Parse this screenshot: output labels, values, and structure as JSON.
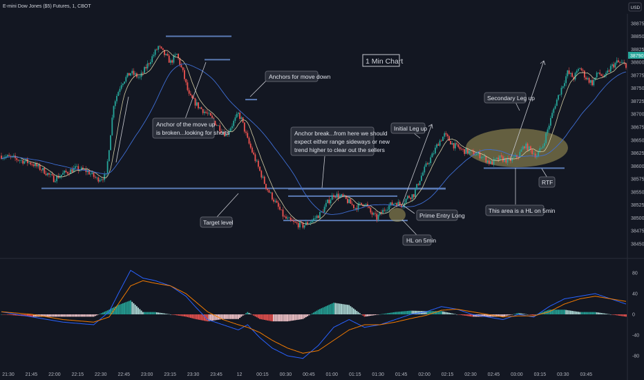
{
  "header": {
    "symbol_title": "E-mini Dow Jones ($5) Futures, 1, CBOT",
    "currency": "USD"
  },
  "chart_title": "1 Min Chart",
  "chart_data": [
    {
      "type": "candlestick",
      "title": "E-mini Dow Jones ($5) Futures, 1, CBOT",
      "ylim": [
        38438,
        38888
      ],
      "y_ticks": [
        38450,
        38475,
        38500,
        38525,
        38550,
        38575,
        38600,
        38625,
        38650,
        38675,
        38700,
        38725,
        38750,
        38775,
        38800,
        38825,
        38850,
        38875
      ],
      "x_ticks": [
        "21:30",
        "21:45",
        "22:00",
        "22:15",
        "22:30",
        "22:45",
        "23:00",
        "23:15",
        "23:30",
        "23:45",
        "12",
        "00:15",
        "00:30",
        "00:45",
        "01:00",
        "01:15",
        "01:30",
        "01:45",
        "02:00",
        "02:15",
        "02:30",
        "02:45",
        "03:00",
        "03:15",
        "03:30",
        "03:45"
      ],
      "last_price": "38790",
      "price_path": [
        [
          0,
          38620
        ],
        [
          8,
          38615
        ],
        [
          20,
          38605
        ],
        [
          28,
          38590
        ],
        [
          34,
          38575
        ],
        [
          40,
          38585
        ],
        [
          48,
          38595
        ],
        [
          56,
          38590
        ],
        [
          62,
          38575
        ],
        [
          68,
          38580
        ],
        [
          73,
          38720
        ],
        [
          78,
          38760
        ],
        [
          84,
          38780
        ],
        [
          90,
          38770
        ],
        [
          96,
          38800
        ],
        [
          102,
          38830
        ],
        [
          106,
          38815
        ],
        [
          110,
          38800
        ],
        [
          114,
          38815
        ],
        [
          118,
          38780
        ],
        [
          122,
          38735
        ],
        [
          128,
          38715
        ],
        [
          134,
          38700
        ],
        [
          140,
          38680
        ],
        [
          146,
          38660
        ],
        [
          150,
          38680
        ],
        [
          154,
          38700
        ],
        [
          156,
          38690
        ],
        [
          160,
          38650
        ],
        [
          164,
          38620
        ],
        [
          168,
          38590
        ],
        [
          172,
          38560
        ],
        [
          176,
          38540
        ],
        [
          180,
          38520
        ],
        [
          184,
          38500
        ],
        [
          190,
          38490
        ],
        [
          196,
          38485
        ],
        [
          202,
          38495
        ],
        [
          208,
          38510
        ],
        [
          212,
          38530
        ],
        [
          216,
          38545
        ],
        [
          222,
          38540
        ],
        [
          226,
          38530
        ],
        [
          230,
          38520
        ],
        [
          236,
          38530
        ],
        [
          240,
          38510
        ],
        [
          244,
          38500
        ],
        [
          250,
          38520
        ],
        [
          256,
          38530
        ],
        [
          260,
          38525
        ],
        [
          264,
          38540
        ],
        [
          268,
          38545
        ],
        [
          272,
          38575
        ],
        [
          276,
          38600
        ],
        [
          280,
          38620
        ],
        [
          284,
          38645
        ],
        [
          288,
          38660
        ],
        [
          294,
          38640
        ],
        [
          300,
          38630
        ],
        [
          306,
          38625
        ],
        [
          312,
          38620
        ],
        [
          318,
          38605
        ],
        [
          324,
          38615
        ],
        [
          330,
          38610
        ],
        [
          336,
          38620
        ],
        [
          340,
          38640
        ],
        [
          344,
          38630
        ],
        [
          348,
          38620
        ],
        [
          352,
          38640
        ],
        [
          356,
          38680
        ],
        [
          360,
          38720
        ],
        [
          364,
          38750
        ],
        [
          368,
          38780
        ],
        [
          372,
          38770
        ],
        [
          376,
          38790
        ],
        [
          380,
          38770
        ],
        [
          384,
          38760
        ],
        [
          388,
          38780
        ],
        [
          392,
          38770
        ],
        [
          396,
          38790
        ],
        [
          400,
          38800
        ],
        [
          406,
          38795
        ]
      ],
      "horizontal_levels": [
        {
          "label": "Target level",
          "value": 38557
        },
        {
          "label": "Range high",
          "value": 38556
        },
        {
          "label": "Range low",
          "value": 38495
        },
        {
          "label": "Range box top",
          "value": 38542
        },
        {
          "label": "Top",
          "value": 38850
        },
        {
          "label": "Top 2",
          "value": 38805
        },
        {
          "label": "Anchor move down",
          "value": 38728
        },
        {
          "label": "RTF",
          "value": 38596
        }
      ]
    },
    {
      "type": "macd",
      "ylim": [
        -100,
        100
      ],
      "y_ticks": [
        80,
        40,
        0,
        -40,
        -80
      ],
      "macd_path": [
        [
          0,
          5
        ],
        [
          20,
          -5
        ],
        [
          40,
          -15
        ],
        [
          60,
          -20
        ],
        [
          70,
          5
        ],
        [
          76,
          40
        ],
        [
          84,
          85
        ],
        [
          92,
          70
        ],
        [
          100,
          65
        ],
        [
          110,
          55
        ],
        [
          120,
          35
        ],
        [
          126,
          15
        ],
        [
          134,
          -10
        ],
        [
          144,
          -20
        ],
        [
          154,
          -30
        ],
        [
          160,
          -20
        ],
        [
          168,
          -45
        ],
        [
          176,
          -65
        ],
        [
          186,
          -80
        ],
        [
          196,
          -85
        ],
        [
          206,
          -60
        ],
        [
          216,
          -25
        ],
        [
          226,
          -10
        ],
        [
          236,
          -25
        ],
        [
          246,
          -20
        ],
        [
          256,
          -10
        ],
        [
          266,
          0
        ],
        [
          276,
          5
        ],
        [
          286,
          15
        ],
        [
          296,
          10
        ],
        [
          306,
          0
        ],
        [
          316,
          -5
        ],
        [
          326,
          -10
        ],
        [
          336,
          0
        ],
        [
          346,
          -5
        ],
        [
          356,
          15
        ],
        [
          366,
          30
        ],
        [
          376,
          35
        ],
        [
          386,
          40
        ],
        [
          396,
          30
        ],
        [
          406,
          20
        ]
      ],
      "signal_path": [
        [
          0,
          5
        ],
        [
          20,
          0
        ],
        [
          40,
          -10
        ],
        [
          60,
          -15
        ],
        [
          70,
          -5
        ],
        [
          76,
          20
        ],
        [
          84,
          55
        ],
        [
          92,
          65
        ],
        [
          100,
          60
        ],
        [
          110,
          55
        ],
        [
          120,
          40
        ],
        [
          126,
          25
        ],
        [
          134,
          5
        ],
        [
          144,
          -10
        ],
        [
          154,
          -20
        ],
        [
          160,
          -25
        ],
        [
          168,
          -35
        ],
        [
          176,
          -50
        ],
        [
          186,
          -65
        ],
        [
          196,
          -75
        ],
        [
          206,
          -70
        ],
        [
          216,
          -50
        ],
        [
          226,
          -30
        ],
        [
          236,
          -20
        ],
        [
          246,
          -20
        ],
        [
          256,
          -15
        ],
        [
          266,
          -8
        ],
        [
          276,
          -2
        ],
        [
          286,
          8
        ],
        [
          296,
          10
        ],
        [
          306,
          5
        ],
        [
          316,
          0
        ],
        [
          326,
          -5
        ],
        [
          336,
          -3
        ],
        [
          346,
          -3
        ],
        [
          356,
          5
        ],
        [
          366,
          20
        ],
        [
          376,
          30
        ],
        [
          386,
          35
        ],
        [
          396,
          30
        ],
        [
          406,
          25
        ]
      ]
    }
  ],
  "annotations": {
    "anchor_move_down": "Anchors for move down",
    "anchor_up_line1": "Anchor of the move up",
    "anchor_up_line2": "is broken...looking for shorts",
    "anchor_break_line1": "Anchor break...from here we should",
    "anchor_break_line2": "expect either range sideways or new",
    "anchor_break_line3": "trend higher to clear out the sellers",
    "initial_leg": "Initial Leg up",
    "secondary_leg": "Secondary Leg up",
    "target_level": "Target level",
    "prime_entry": "Prime Entry Long",
    "hl_5min": "HL on 5min",
    "hl_area": "This area is a HL on 5min",
    "rtf": "RTF"
  },
  "colors": {
    "background": "#131722",
    "up": "#26a69a",
    "down": "#ef5350",
    "level": "#5b7bb5",
    "ma_fast": "#d6cfa6",
    "ma_slow": "#3f6fd6",
    "macd": "#2962ff",
    "signal": "#f57c00",
    "highlight": "#a89a5a"
  }
}
